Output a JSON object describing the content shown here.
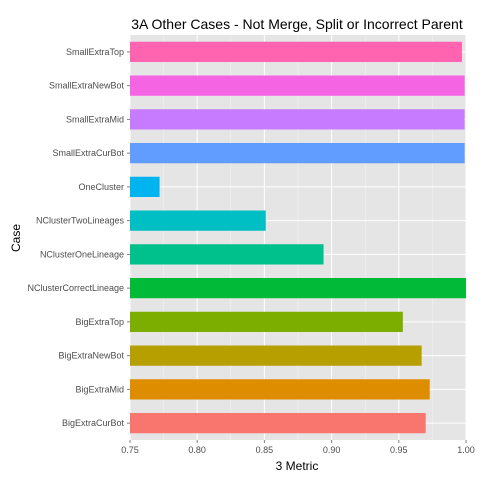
{
  "chart_data": {
    "type": "bar",
    "orientation": "horizontal",
    "title": "3A Other Cases - Not Merge, Split or Incorrect Parent",
    "xlabel": "3 Metric",
    "ylabel": "Case",
    "xlim": [
      0.75,
      1.0
    ],
    "xticks": [
      "0.75",
      "0.80",
      "0.85",
      "0.90",
      "0.95",
      "1.00"
    ],
    "grid": true,
    "legend": "none",
    "categories": [
      "BigExtraCurBot",
      "BigExtraMid",
      "BigExtraNewBot",
      "BigExtraTop",
      "NClusterCorrectLineage",
      "NClusterOneLineage",
      "NClusterTwoLineages",
      "OneCluster",
      "SmallExtraCurBot",
      "SmallExtraMid",
      "SmallExtraNewBot",
      "SmallExtraTop"
    ],
    "values": [
      0.97,
      0.973,
      0.967,
      0.953,
      1.0,
      0.894,
      0.851,
      0.772,
      0.999,
      0.999,
      0.999,
      0.997
    ],
    "colors": [
      "#F8766D",
      "#DE8C00",
      "#B79F00",
      "#7CAE00",
      "#00BA38",
      "#00C08B",
      "#00BFC4",
      "#00B4F0",
      "#619CFF",
      "#C77CFF",
      "#F564E3",
      "#FF64B0"
    ],
    "panel_background": "#E5E5E5",
    "grid_color": "#FFFFFF"
  }
}
